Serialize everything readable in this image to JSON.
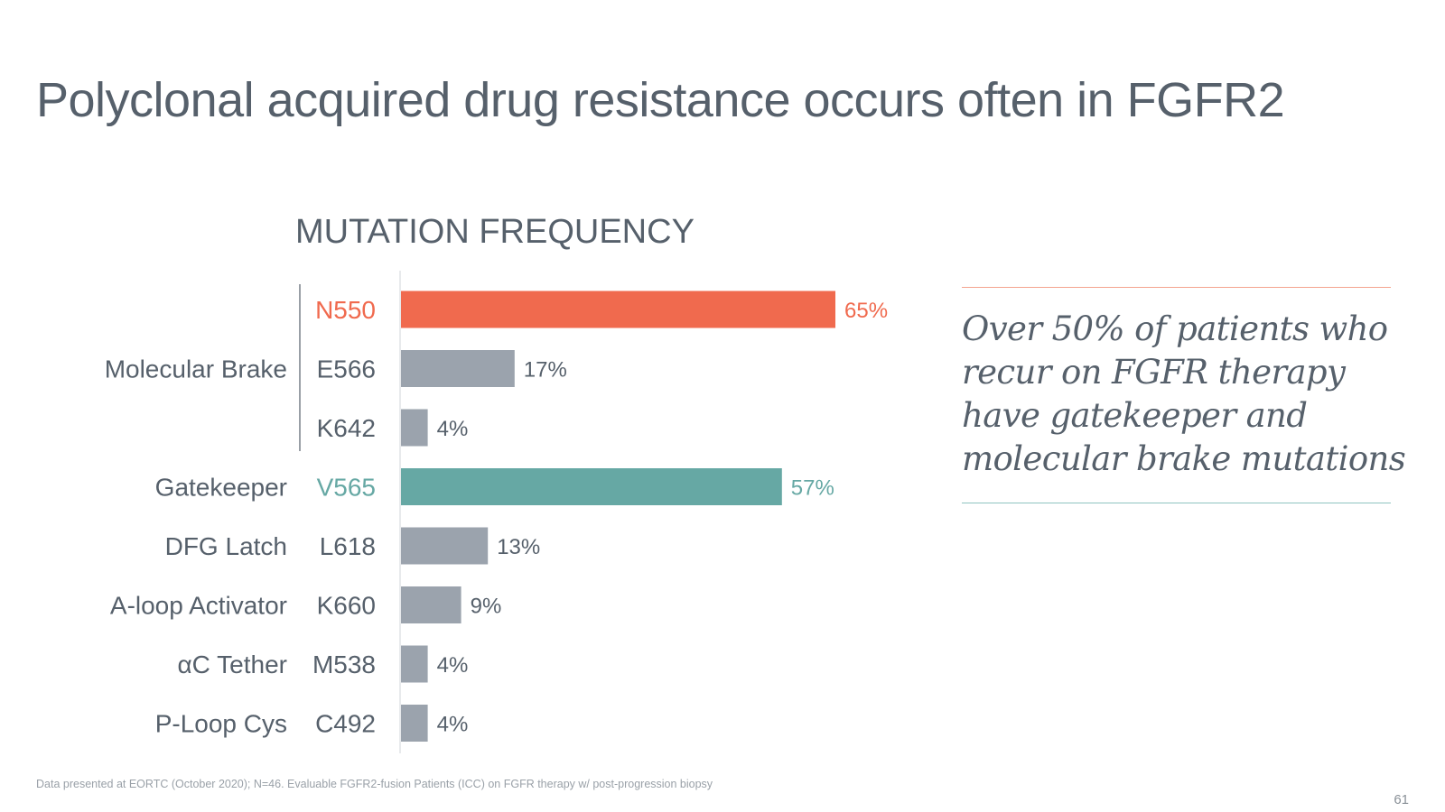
{
  "slide": {
    "title": "Polyclonal acquired drug resistance occurs often in FGFR2",
    "footnote": "Data presented at EORTC (October 2020); N=46. Evaluable FGFR2-fusion Patients (ICC) on FGFR therapy w/ post-progression biopsy",
    "page_number": "61"
  },
  "callout": {
    "text": "Over 50% of patients who recur on FGFR therapy have gatekeeper and molecular brake mutations",
    "lines": [
      "Over 50% of patients who",
      "recur on FGFR therapy",
      "have gatekeeper and",
      "molecular brake mutations"
    ],
    "top_rule_color": "#f4a48f",
    "bottom_rule_color": "#8fc4c0"
  },
  "chart_data": {
    "type": "bar",
    "orientation": "horizontal",
    "title": "MUTATION FREQUENCY",
    "xlim": [
      0,
      65
    ],
    "grid": false,
    "legend": "none",
    "categories": [
      "N550",
      "E566",
      "K642",
      "V565",
      "L618",
      "K660",
      "M538",
      "C492"
    ],
    "values": [
      65,
      17,
      4,
      57,
      13,
      9,
      4,
      4
    ],
    "value_labels": [
      "65%",
      "17%",
      "4%",
      "57%",
      "13%",
      "9%",
      "4%",
      "4%"
    ],
    "highlight": [
      "orange",
      "gray",
      "gray",
      "teal",
      "gray",
      "gray",
      "gray",
      "gray"
    ],
    "groups": [
      {
        "label": "Molecular Brake",
        "members": [
          "N550",
          "E566",
          "K642"
        ]
      },
      {
        "label": "Gatekeeper",
        "members": [
          "V565"
        ]
      },
      {
        "label": "DFG Latch",
        "members": [
          "L618"
        ]
      },
      {
        "label": "A-loop Activator",
        "members": [
          "K660"
        ]
      },
      {
        "label": "αC Tether",
        "members": [
          "M538"
        ]
      },
      {
        "label": "P-Loop Cys",
        "members": [
          "C492"
        ]
      }
    ],
    "colors": {
      "orange": "#f06a4e",
      "teal": "#66a8a4",
      "gray": "#9ba3ad",
      "text": "#56606b",
      "axis": "#d0d4d8"
    }
  }
}
